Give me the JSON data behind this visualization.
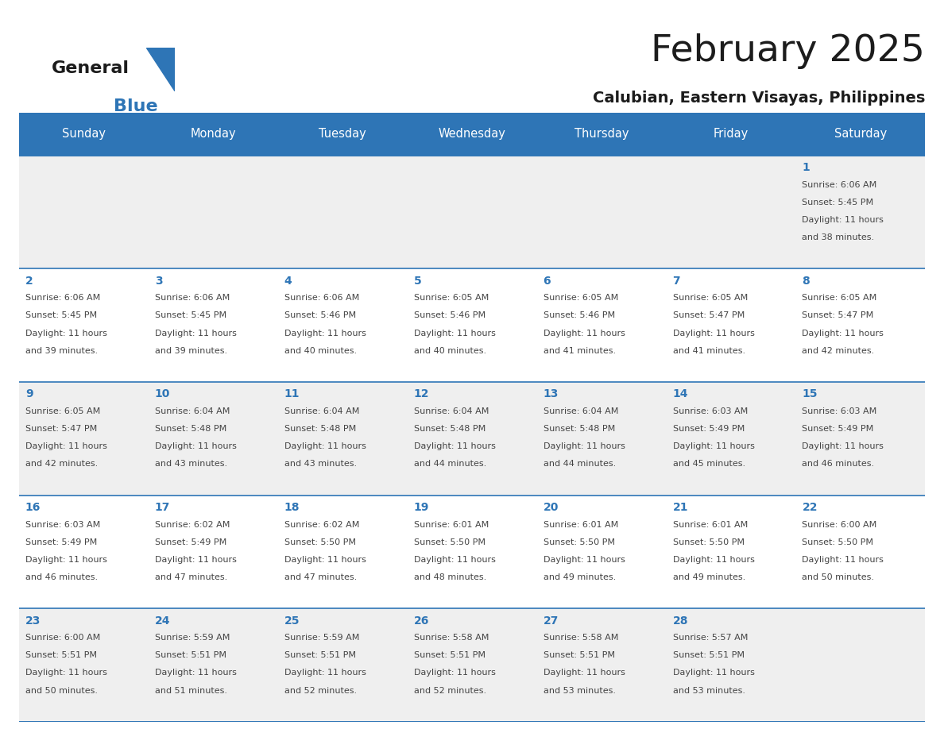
{
  "title": "February 2025",
  "subtitle": "Calubian, Eastern Visayas, Philippines",
  "days_of_week": [
    "Sunday",
    "Monday",
    "Tuesday",
    "Wednesday",
    "Thursday",
    "Friday",
    "Saturday"
  ],
  "header_bg": "#2E75B6",
  "header_text": "#FFFFFF",
  "row_bg_odd": "#EFEFEF",
  "row_bg_even": "#FFFFFF",
  "cell_border_color": "#2E75B6",
  "day_number_color": "#2E75B6",
  "text_color": "#444444",
  "calendar_data": [
    [
      null,
      null,
      null,
      null,
      null,
      null,
      {
        "day": 1,
        "sunrise": "6:06 AM",
        "sunset": "5:45 PM",
        "daylight": "11 hours and 38 minutes."
      }
    ],
    [
      {
        "day": 2,
        "sunrise": "6:06 AM",
        "sunset": "5:45 PM",
        "daylight": "11 hours and 39 minutes."
      },
      {
        "day": 3,
        "sunrise": "6:06 AM",
        "sunset": "5:45 PM",
        "daylight": "11 hours and 39 minutes."
      },
      {
        "day": 4,
        "sunrise": "6:06 AM",
        "sunset": "5:46 PM",
        "daylight": "11 hours and 40 minutes."
      },
      {
        "day": 5,
        "sunrise": "6:05 AM",
        "sunset": "5:46 PM",
        "daylight": "11 hours and 40 minutes."
      },
      {
        "day": 6,
        "sunrise": "6:05 AM",
        "sunset": "5:46 PM",
        "daylight": "11 hours and 41 minutes."
      },
      {
        "day": 7,
        "sunrise": "6:05 AM",
        "sunset": "5:47 PM",
        "daylight": "11 hours and 41 minutes."
      },
      {
        "day": 8,
        "sunrise": "6:05 AM",
        "sunset": "5:47 PM",
        "daylight": "11 hours and 42 minutes."
      }
    ],
    [
      {
        "day": 9,
        "sunrise": "6:05 AM",
        "sunset": "5:47 PM",
        "daylight": "11 hours and 42 minutes."
      },
      {
        "day": 10,
        "sunrise": "6:04 AM",
        "sunset": "5:48 PM",
        "daylight": "11 hours and 43 minutes."
      },
      {
        "day": 11,
        "sunrise": "6:04 AM",
        "sunset": "5:48 PM",
        "daylight": "11 hours and 43 minutes."
      },
      {
        "day": 12,
        "sunrise": "6:04 AM",
        "sunset": "5:48 PM",
        "daylight": "11 hours and 44 minutes."
      },
      {
        "day": 13,
        "sunrise": "6:04 AM",
        "sunset": "5:48 PM",
        "daylight": "11 hours and 44 minutes."
      },
      {
        "day": 14,
        "sunrise": "6:03 AM",
        "sunset": "5:49 PM",
        "daylight": "11 hours and 45 minutes."
      },
      {
        "day": 15,
        "sunrise": "6:03 AM",
        "sunset": "5:49 PM",
        "daylight": "11 hours and 46 minutes."
      }
    ],
    [
      {
        "day": 16,
        "sunrise": "6:03 AM",
        "sunset": "5:49 PM",
        "daylight": "11 hours and 46 minutes."
      },
      {
        "day": 17,
        "sunrise": "6:02 AM",
        "sunset": "5:49 PM",
        "daylight": "11 hours and 47 minutes."
      },
      {
        "day": 18,
        "sunrise": "6:02 AM",
        "sunset": "5:50 PM",
        "daylight": "11 hours and 47 minutes."
      },
      {
        "day": 19,
        "sunrise": "6:01 AM",
        "sunset": "5:50 PM",
        "daylight": "11 hours and 48 minutes."
      },
      {
        "day": 20,
        "sunrise": "6:01 AM",
        "sunset": "5:50 PM",
        "daylight": "11 hours and 49 minutes."
      },
      {
        "day": 21,
        "sunrise": "6:01 AM",
        "sunset": "5:50 PM",
        "daylight": "11 hours and 49 minutes."
      },
      {
        "day": 22,
        "sunrise": "6:00 AM",
        "sunset": "5:50 PM",
        "daylight": "11 hours and 50 minutes."
      }
    ],
    [
      {
        "day": 23,
        "sunrise": "6:00 AM",
        "sunset": "5:51 PM",
        "daylight": "11 hours and 50 minutes."
      },
      {
        "day": 24,
        "sunrise": "5:59 AM",
        "sunset": "5:51 PM",
        "daylight": "11 hours and 51 minutes."
      },
      {
        "day": 25,
        "sunrise": "5:59 AM",
        "sunset": "5:51 PM",
        "daylight": "11 hours and 52 minutes."
      },
      {
        "day": 26,
        "sunrise": "5:58 AM",
        "sunset": "5:51 PM",
        "daylight": "11 hours and 52 minutes."
      },
      {
        "day": 27,
        "sunrise": "5:58 AM",
        "sunset": "5:51 PM",
        "daylight": "11 hours and 53 minutes."
      },
      {
        "day": 28,
        "sunrise": "5:57 AM",
        "sunset": "5:51 PM",
        "daylight": "11 hours and 53 minutes."
      },
      null
    ]
  ]
}
